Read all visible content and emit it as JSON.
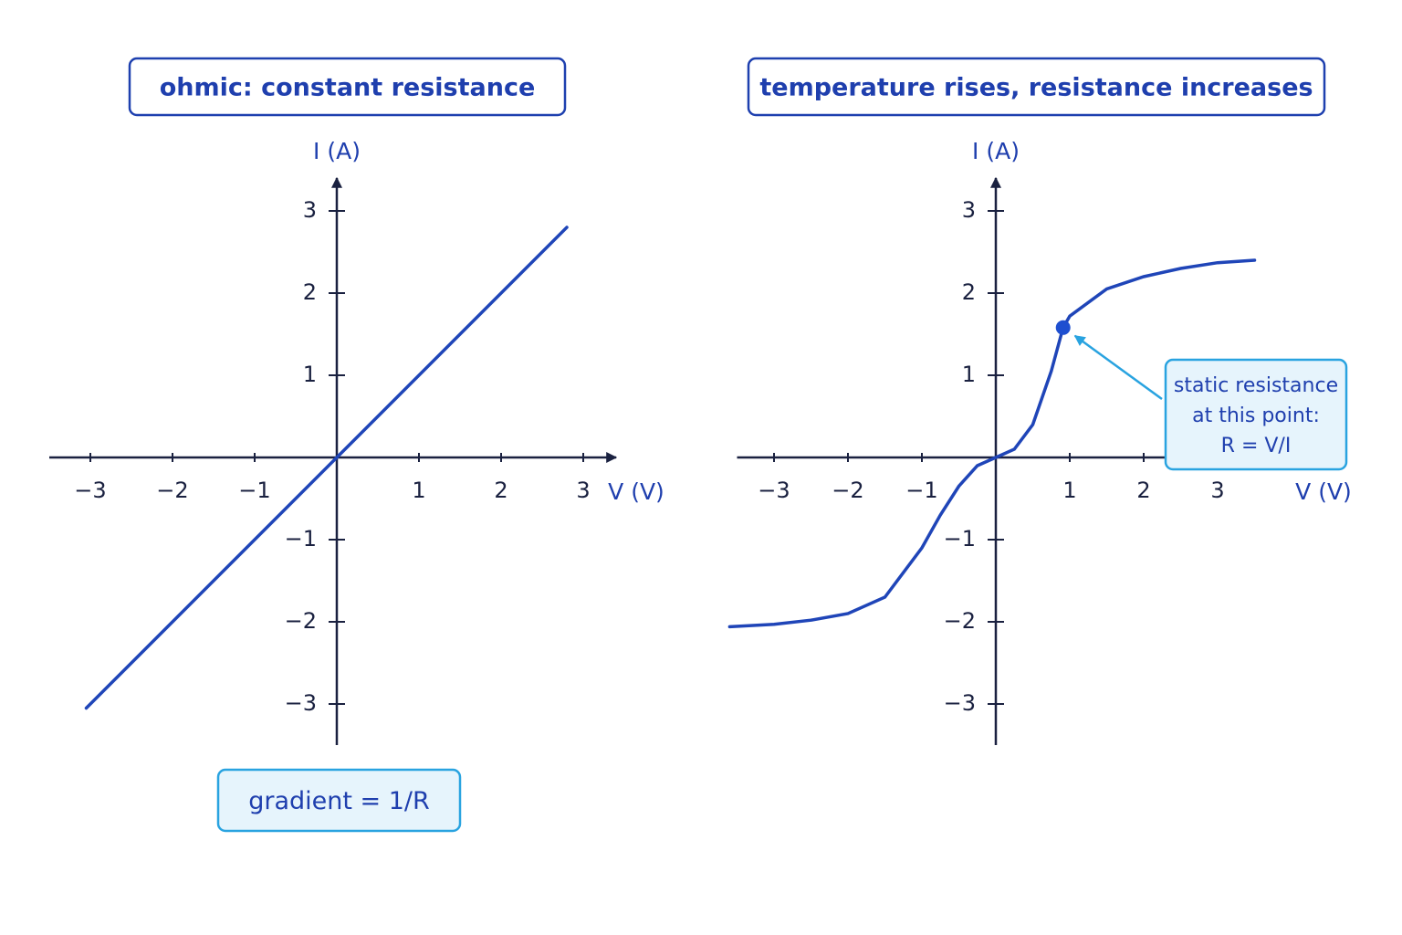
{
  "chart_data": [
    {
      "type": "line",
      "title": "ohmic: constant resistance",
      "x_label": "V (V)",
      "y_label": "I (A)",
      "x": [
        -3.05,
        2.8
      ],
      "values": [
        -3.05,
        2.8
      ],
      "color": "#1f45b8",
      "xlim": [
        -3.5,
        3.4
      ],
      "ylim": [
        -3.5,
        3.4
      ],
      "xticks": [
        {
          "value": -3,
          "label": "−3"
        },
        {
          "value": -2,
          "label": "−2"
        },
        {
          "value": -1,
          "label": "−1"
        },
        1,
        2,
        3
      ],
      "yticks": [
        {
          "value": -3,
          "label": "−3"
        },
        {
          "value": -2,
          "label": "−2"
        },
        {
          "value": -1,
          "label": "−1"
        },
        1,
        2,
        3
      ],
      "annotation": [
        "gradient = 1/R"
      ]
    },
    {
      "type": "line",
      "title": "temperature rises, resistance increases",
      "x_label": "V (V)",
      "y_label": "I (A)",
      "x": [
        -3.6,
        -3,
        -2.5,
        -2,
        -1.5,
        -1,
        -0.75,
        -0.5,
        -0.25,
        0,
        0.25,
        0.5,
        0.75,
        0.91,
        1,
        1.5,
        2,
        2.5,
        3,
        3.5
      ],
      "values": [
        -2.06,
        -2.03,
        -1.98,
        -1.9,
        -1.7,
        -1.1,
        -0.7,
        -0.35,
        -0.1,
        0,
        0.1,
        0.4,
        1.05,
        1.58,
        1.72,
        2.05,
        2.2,
        2.3,
        2.37,
        2.4
      ],
      "color": "#1f45b8",
      "highlight": {
        "x": 0.91,
        "y": 1.58
      },
      "xlim": [
        -3.5,
        3.5
      ],
      "ylim": [
        -3.5,
        3.4
      ],
      "xticks": [
        {
          "value": -3,
          "label": "−3"
        },
        {
          "value": -2,
          "label": "−2"
        },
        {
          "value": -1,
          "label": "−1"
        },
        1,
        2,
        3
      ],
      "yticks": [
        {
          "value": -3,
          "label": "−3"
        },
        {
          "value": -2,
          "label": "−2"
        },
        {
          "value": -1,
          "label": "−1"
        },
        1,
        2,
        3
      ],
      "annotation": [
        "static resistance",
        "at this point:",
        "R = V/I"
      ]
    }
  ]
}
